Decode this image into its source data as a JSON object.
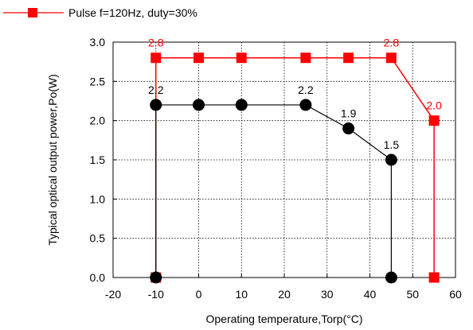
{
  "chart_data": {
    "type": "line",
    "title": "",
    "xlabel": "Operating temperature,Torp(°C)",
    "ylabel": "Typical optical output power,Po(W)",
    "xlim": [
      -20,
      60
    ],
    "ylim": [
      0,
      3
    ],
    "x_ticks": [
      "-20",
      "-10",
      "0",
      "10",
      "20",
      "30",
      "40",
      "50",
      "60"
    ],
    "y_ticks": [
      "0.0",
      "0.5",
      "1.0",
      "1.5",
      "2.0",
      "2.5",
      "3.0"
    ],
    "grid": "dotted",
    "legend_position": "top-left, above plot",
    "series": [
      {
        "name": "Pulse f=120Hz, duty=30%",
        "color": "#ff0000",
        "marker": "square",
        "x": [
          -10,
          -10,
          0,
          10,
          25,
          35,
          45,
          55,
          55
        ],
        "y": [
          0,
          2.8,
          2.8,
          2.8,
          2.8,
          2.8,
          2.8,
          2.0,
          0
        ],
        "data_labels": [
          {
            "x": -10,
            "y": 2.8,
            "text": "2.8"
          },
          {
            "x": 45,
            "y": 2.8,
            "text": "2.8"
          },
          {
            "x": 55,
            "y": 2.0,
            "text": "2.0"
          }
        ]
      },
      {
        "color": "#000000",
        "marker": "circle",
        "x": [
          -10,
          -10,
          0,
          10,
          25,
          35,
          45,
          45
        ],
        "y": [
          0,
          2.2,
          2.2,
          2.2,
          2.2,
          1.9,
          1.5,
          0
        ],
        "data_labels": [
          {
            "x": -10,
            "y": 2.2,
            "text": "2.2"
          },
          {
            "x": 25,
            "y": 2.2,
            "text": "2.2"
          },
          {
            "x": 35,
            "y": 1.9,
            "text": "1.9"
          },
          {
            "x": 45,
            "y": 1.5,
            "text": "1.5"
          }
        ]
      }
    ]
  }
}
